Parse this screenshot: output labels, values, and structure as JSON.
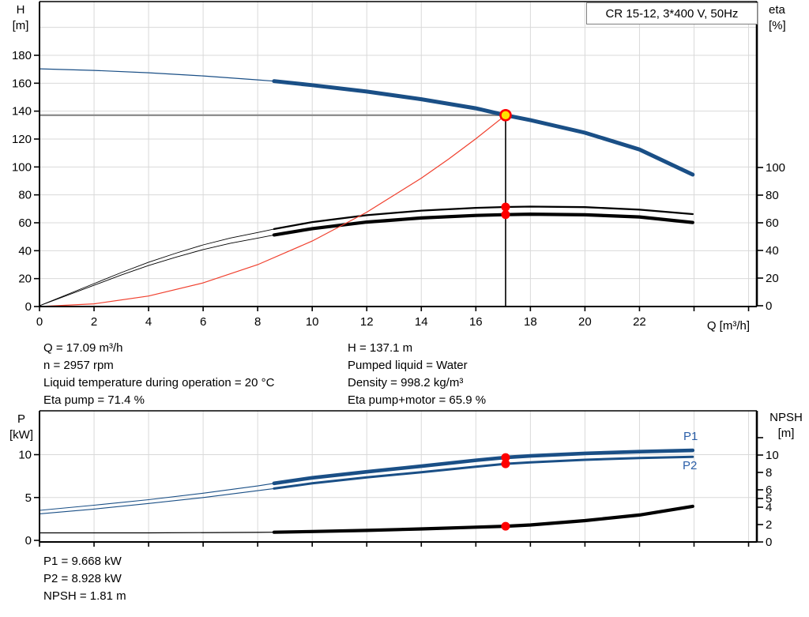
{
  "colors": {
    "curve_blue": "#1a4f86",
    "label_blue": "#2b5fa8",
    "curve_black": "#000000",
    "system_red": "#f0402e",
    "marker_red": "#ff0000",
    "op_point_yellow": "#ffe100",
    "crosshair_gray": "#8f8f8f",
    "grid_gray": "#d9d9d9",
    "axis_black": "#000000"
  },
  "info_top": {
    "left": [
      "Q = 17.09 m³/h",
      "n = 2957 rpm",
      "Liquid temperature during operation = 20 °C",
      "Eta pump = 71.4 %"
    ],
    "right": [
      "H = 137.1 m",
      "Pumped liquid = Water",
      "Density = 998.2 kg/m³",
      "Eta pump+motor = 65.9 %"
    ]
  },
  "info_bottom": [
    "P1 = 9.668 kW",
    "P2 = 8.928 kW",
    "NPSH = 1.81 m"
  ],
  "chart_data": [
    {
      "type": "line",
      "title": "CR 15-12, 3*400 V, 50Hz",
      "xlabel": "Q [m³/h]",
      "ylabel_left": "H [m]",
      "ylabel_left_lines": [
        "H",
        "[m]"
      ],
      "ylabel_right": "eta [%]",
      "ylabel_right_lines": [
        "eta",
        "[%]"
      ],
      "xlim": [
        0,
        26.3
      ],
      "ylim_left": [
        0,
        219
      ],
      "ylim_right": [
        0,
        220
      ],
      "x_ticks_labeled": [
        0,
        2,
        4,
        6,
        8,
        10,
        12,
        14,
        16,
        18,
        20,
        22
      ],
      "x_ticks_all": [
        0,
        2,
        4,
        6,
        8,
        10,
        12,
        14,
        16,
        18,
        20,
        22,
        24,
        26
      ],
      "y_ticks_left": [
        0,
        20,
        40,
        60,
        80,
        100,
        120,
        140,
        160,
        180
      ],
      "y_ticks_right": [
        0,
        20,
        40,
        60,
        80,
        100
      ],
      "grid": true,
      "series": [
        {
          "name": "head-curve",
          "axis": "H",
          "color": "#1a4f86",
          "thin": 1.2,
          "thick": 5,
          "split": 8.6,
          "points": [
            [
              0,
              170.3
            ],
            [
              2,
              169.2
            ],
            [
              4,
              167.5
            ],
            [
              6,
              165.2
            ],
            [
              8,
              162.4
            ],
            [
              8.6,
              161.5
            ],
            [
              10,
              158.6
            ],
            [
              12,
              154.0
            ],
            [
              14,
              148.5
            ],
            [
              16,
              142.0
            ],
            [
              17.09,
              137.1
            ],
            [
              18,
              133.5
            ],
            [
              20,
              124.5
            ],
            [
              22,
              112.5
            ],
            [
              23.95,
              94.5
            ]
          ]
        },
        {
          "name": "eta-pump-curve",
          "axis": "eta",
          "color": "#000000",
          "thin": 0.9,
          "thick": 2.3,
          "split": 8.6,
          "points": [
            [
              0,
              0
            ],
            [
              1,
              8
            ],
            [
              2,
              16
            ],
            [
              3,
              24
            ],
            [
              4,
              31.5
            ],
            [
              5,
              38
            ],
            [
              6,
              44
            ],
            [
              7,
              49
            ],
            [
              8,
              53
            ],
            [
              8.6,
              55.5
            ],
            [
              10,
              60.5
            ],
            [
              12,
              65.5
            ],
            [
              14,
              68.8
            ],
            [
              16,
              70.8
            ],
            [
              17.09,
              71.4
            ],
            [
              18,
              71.7
            ],
            [
              20,
              71.3
            ],
            [
              22,
              69.5
            ],
            [
              23.95,
              66.3
            ]
          ]
        },
        {
          "name": "eta-pump-motor-curve",
          "axis": "eta",
          "color": "#000000",
          "thin": 0.9,
          "thick": 4.2,
          "split": 8.6,
          "points": [
            [
              0,
              0
            ],
            [
              1,
              7.4
            ],
            [
              2,
              14.8
            ],
            [
              3,
              22.2
            ],
            [
              4,
              29.1
            ],
            [
              5,
              35.1
            ],
            [
              6,
              40.6
            ],
            [
              7,
              45.2
            ],
            [
              8,
              48.9
            ],
            [
              8.6,
              51.2
            ],
            [
              10,
              55.8
            ],
            [
              12,
              60.5
            ],
            [
              14,
              63.5
            ],
            [
              16,
              65.3
            ],
            [
              17.09,
              65.9
            ],
            [
              18,
              66.2
            ],
            [
              20,
              65.8
            ],
            [
              22,
              64.2
            ],
            [
              23.95,
              60.2
            ]
          ]
        },
        {
          "name": "system-curve",
          "axis": "H",
          "color": "#f0402e",
          "thin": 1.2,
          "thick": 1.2,
          "split": 0,
          "points": [
            [
              0,
              0
            ],
            [
              2,
              1.9
            ],
            [
              4,
              7.5
            ],
            [
              6,
              16.9
            ],
            [
              8,
              30.0
            ],
            [
              10,
              46.9
            ],
            [
              12,
              67.6
            ],
            [
              14,
              92.0
            ],
            [
              15,
              105.6
            ],
            [
              16,
              120.2
            ],
            [
              17.09,
              137.1
            ]
          ]
        }
      ],
      "operating_point": {
        "q": 17.09,
        "value": 137.1,
        "axis": "H"
      },
      "markers": [
        {
          "axis": "eta",
          "q": 17.09,
          "value": 71.4
        },
        {
          "axis": "eta",
          "q": 17.09,
          "value": 65.9
        }
      ],
      "crosshair": {
        "horizontal": true,
        "vertical": true
      }
    },
    {
      "type": "line",
      "xlabel": "",
      "ylabel_left": "P [kW]",
      "ylabel_left_lines": [
        "P",
        "[kW]"
      ],
      "ylabel_right": "NPSH [m]",
      "ylabel_right_lines": [
        "NPSH",
        "[m]"
      ],
      "xlim": [
        0,
        26.3
      ],
      "ylim_left": [
        0,
        15.3
      ],
      "ylim_right": [
        0,
        15.1
      ],
      "x_ticks_all": [
        0,
        2,
        4,
        6,
        8,
        10,
        12,
        14,
        16,
        18,
        20,
        22,
        24,
        26
      ],
      "y_ticks_left": [
        0,
        5,
        10
      ],
      "y_ticks_right": [
        {
          "v": 0,
          "label": "0"
        },
        {
          "v": 2,
          "label": "2"
        },
        {
          "v": 4,
          "label": "4"
        },
        {
          "v": 5,
          "label": "5"
        },
        {
          "v": 6,
          "label": "6"
        },
        {
          "v": 8,
          "label": "8"
        },
        {
          "v": 10,
          "label": "10"
        },
        {
          "v": 12,
          "label": ""
        }
      ],
      "grid": true,
      "p1_label": "P1",
      "p2_label": "P2",
      "series": [
        {
          "name": "P1",
          "axis": "P",
          "color": "#1a4f86",
          "thin": 1.1,
          "thick": 4.6,
          "split": 8.6,
          "points": [
            [
              0,
              3.5
            ],
            [
              2,
              4.1
            ],
            [
              4,
              4.75
            ],
            [
              6,
              5.5
            ],
            [
              8,
              6.35
            ],
            [
              8.6,
              6.65
            ],
            [
              10,
              7.3
            ],
            [
              12,
              8.0
            ],
            [
              14,
              8.65
            ],
            [
              16,
              9.35
            ],
            [
              17.09,
              9.668
            ],
            [
              18,
              9.85
            ],
            [
              20,
              10.15
            ],
            [
              22,
              10.35
            ],
            [
              23.95,
              10.5
            ]
          ]
        },
        {
          "name": "P2",
          "axis": "P",
          "color": "#1a4f86",
          "thin": 1.1,
          "thick": 3.0,
          "split": 8.6,
          "points": [
            [
              0,
              3.1
            ],
            [
              2,
              3.65
            ],
            [
              4,
              4.3
            ],
            [
              6,
              5.0
            ],
            [
              8,
              5.8
            ],
            [
              8.6,
              6.05
            ],
            [
              10,
              6.65
            ],
            [
              12,
              7.35
            ],
            [
              14,
              7.95
            ],
            [
              16,
              8.6
            ],
            [
              17.09,
              8.928
            ],
            [
              18,
              9.1
            ],
            [
              20,
              9.4
            ],
            [
              22,
              9.6
            ],
            [
              23.95,
              9.75
            ]
          ]
        },
        {
          "name": "NPSH",
          "axis": "NPSH",
          "color": "#000000",
          "thin": 1.2,
          "thick": 4.2,
          "split": 8.6,
          "points": [
            [
              0,
              1.05
            ],
            [
              4,
              1.05
            ],
            [
              8,
              1.1
            ],
            [
              8.6,
              1.12
            ],
            [
              10,
              1.2
            ],
            [
              12,
              1.33
            ],
            [
              14,
              1.5
            ],
            [
              16,
              1.7
            ],
            [
              17.09,
              1.81
            ],
            [
              18,
              1.95
            ],
            [
              20,
              2.45
            ],
            [
              22,
              3.1
            ],
            [
              23.95,
              4.1
            ]
          ]
        }
      ],
      "markers": [
        {
          "axis": "P",
          "q": 17.09,
          "value": 9.668
        },
        {
          "axis": "P",
          "q": 17.09,
          "value": 8.928
        },
        {
          "axis": "NPSH",
          "q": 17.09,
          "value": 1.81
        }
      ]
    }
  ]
}
